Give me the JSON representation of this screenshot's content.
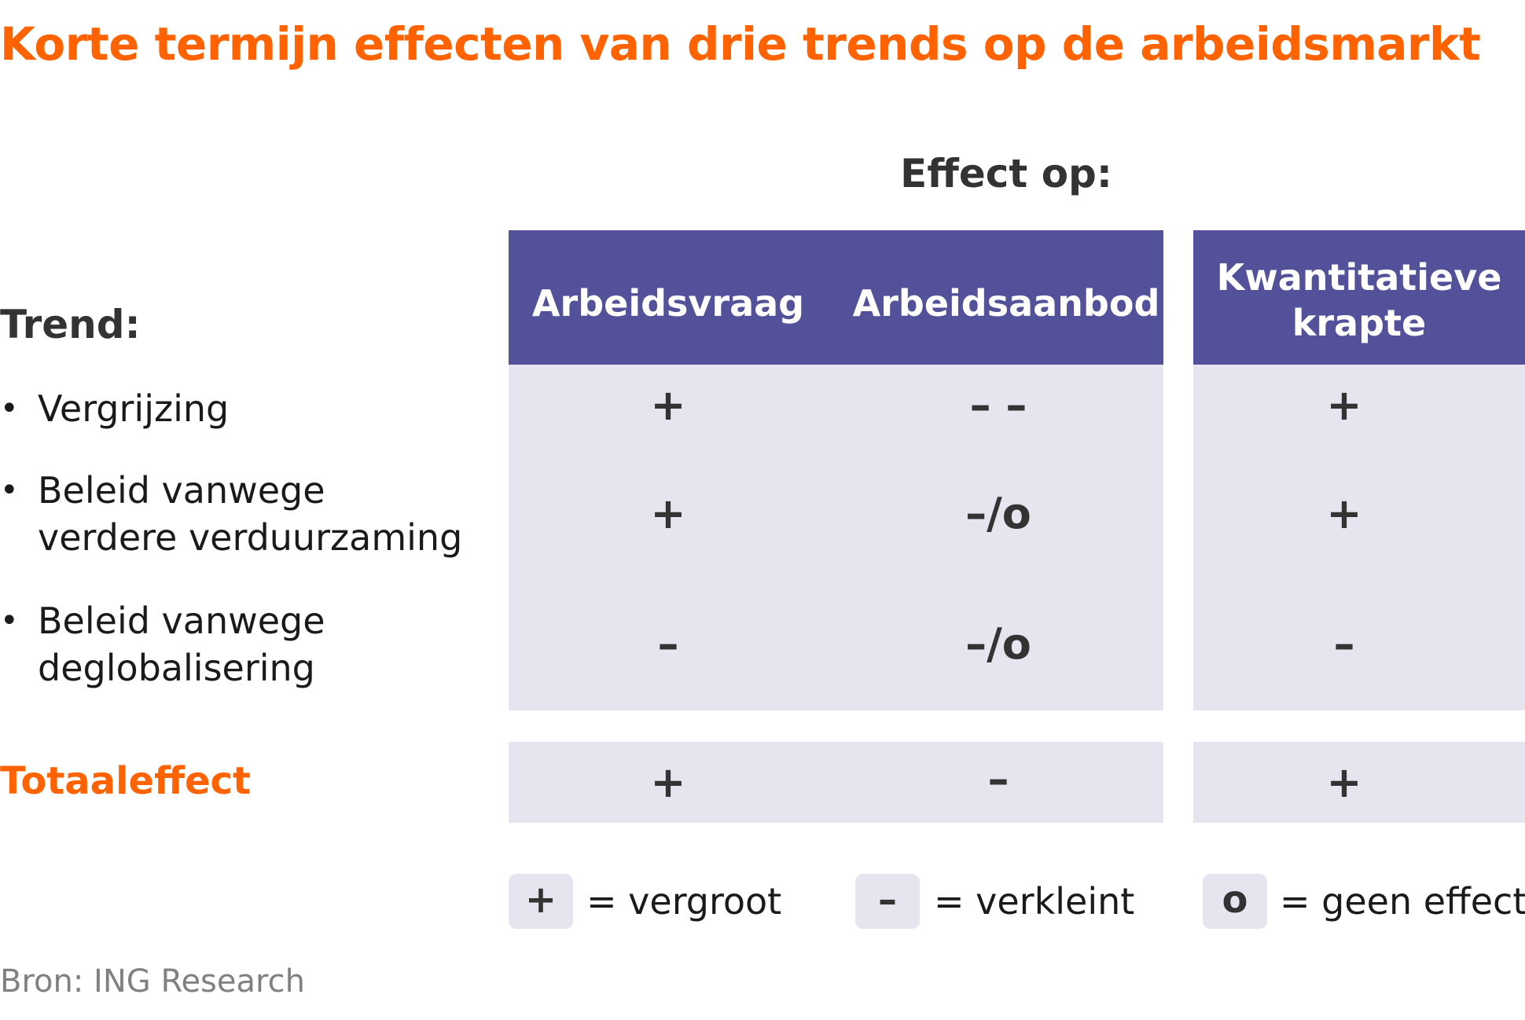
{
  "title": "Korte termijn effecten van drie trends op de arbeidsmarkt",
  "effect_label": "Effect op:",
  "trend_label": "Trend:",
  "columns": [
    {
      "line1": "Arbeidsvraag",
      "line2": ""
    },
    {
      "line1": "Arbeidsaanbod",
      "line2": ""
    },
    {
      "line1": "Kwantitatieve",
      "line2": "krapte"
    }
  ],
  "trends": [
    {
      "bullet": "•",
      "line1": "Vergrijzing",
      "line2": "",
      "values": [
        "+",
        "– –",
        "+"
      ]
    },
    {
      "bullet": "•",
      "line1": "Beleid vanwege",
      "line2": "verdere verduurzaming",
      "values": [
        "+",
        "–/o",
        "+"
      ]
    },
    {
      "bullet": "•",
      "line1": "Beleid vanwege",
      "line2": "deglobalisering",
      "values": [
        "–",
        "–/o",
        "–"
      ]
    }
  ],
  "total": {
    "label": "Totaaleffect",
    "values": [
      "+",
      "–",
      "+"
    ]
  },
  "legend": [
    {
      "symbol": "+",
      "text": "= vergroot"
    },
    {
      "symbol": "–",
      "text": "= verkleint"
    },
    {
      "symbol": "o",
      "text": "= geen effect"
    }
  ],
  "source": "Bron: ING Research",
  "colors": {
    "accent": "#ff6200",
    "header_bg": "#525199",
    "cell_bg": "#e6e5ef",
    "text": "#333333"
  }
}
